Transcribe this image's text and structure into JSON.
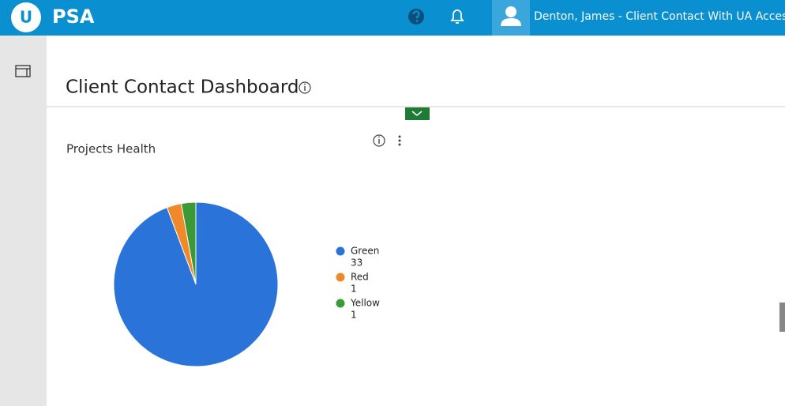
{
  "header": {
    "logo_letter": "U",
    "logo": "PSA",
    "user": "Denton, James - Client Contact With UA Access"
  },
  "page_title": "Client Contact Dashboard",
  "chart_data": {
    "type": "pie",
    "title": "Projects Health",
    "categories": [
      "Green",
      "Red",
      "Yellow"
    ],
    "values": [
      33,
      1,
      1
    ],
    "colors": [
      "#2a74d9",
      "#f0892a",
      "#3a9a35"
    ]
  }
}
